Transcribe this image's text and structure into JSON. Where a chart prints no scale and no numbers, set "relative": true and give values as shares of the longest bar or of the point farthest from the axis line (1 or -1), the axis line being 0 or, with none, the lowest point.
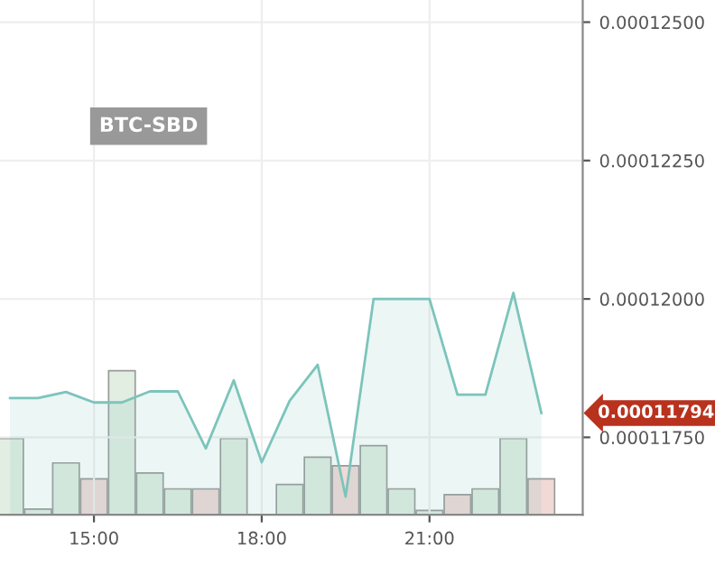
{
  "chart_data": [
    {
      "type": "area",
      "title": "BTC-SBD",
      "x": [
        13.5,
        14,
        14.5,
        15,
        15.5,
        16,
        16.5,
        17,
        17.5,
        18,
        18.5,
        19,
        19.5,
        20,
        20.5,
        21,
        21.5,
        22,
        22.5,
        23
      ],
      "series": [
        {
          "color": "#7cc4bb",
          "values": [
            0.00011821,
            0.00011821,
            0.00011832,
            0.00011813,
            0.00011813,
            0.00011833,
            0.00011833,
            0.0001173,
            0.00011853,
            0.00011705,
            0.00011816,
            0.00011881,
            0.00011643,
            0.00012,
            0.00012,
            0.00012,
            0.00011827,
            0.00011827,
            0.00012011,
            0.00011794
          ]
        }
      ],
      "xlim": [
        13.32,
        23.74
      ],
      "ylim": [
        0.0001161,
        0.0001254
      ],
      "xticks": [
        {
          "value": 15,
          "label": "15:00"
        },
        {
          "value": 18,
          "label": "18:00"
        },
        {
          "value": 21,
          "label": "21:00"
        }
      ],
      "yticks": [
        {
          "value": 0.0001175,
          "label": "0.00011750"
        },
        {
          "value": 0.00012,
          "label": "0.00012000"
        },
        {
          "value": 0.0001225,
          "label": "0.00012250"
        },
        {
          "value": 0.000125,
          "label": "0.00012500"
        }
      ],
      "annotations": [
        "0.00011794"
      ],
      "grid": true
    },
    {
      "type": "bar",
      "relative": true,
      "x": [
        13.5,
        14,
        14.5,
        15,
        15.5,
        16,
        16.5,
        17,
        17.5,
        18,
        18.5,
        19,
        19.5,
        20,
        20.5,
        21,
        21.5,
        22,
        22.5,
        23
      ],
      "values": [
        0.53,
        0.04,
        0.36,
        0.25,
        1,
        0.29,
        0.18,
        0.18,
        0.53,
        null,
        0.21,
        0.4,
        0.34,
        0.48,
        0.18,
        0.03,
        0.14,
        0.18,
        0.53,
        0.25
      ],
      "colors": [
        "#e2eee2",
        "#e2eee2",
        "#e2eee2",
        "#f1d9d6",
        "#e2eee2",
        "#e2eee2",
        "#e2eee2",
        "#f1d9d6",
        "#e2eee2",
        "#e2eee2",
        "#e2eee2",
        "#e2eee2",
        "#f1d9d6",
        "#e2eee2",
        "#e2eee2",
        "#e2eee2",
        "#f1d9d6",
        "#e2eee2",
        "#e2eee2",
        "#f1d9d6"
      ],
      "xlim": [
        13.32,
        23.74
      ]
    }
  ]
}
